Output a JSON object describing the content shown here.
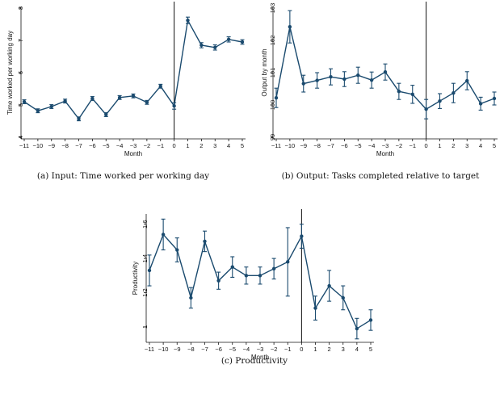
{
  "panels": [
    {
      "caption": "(a) Input: Time worked per working day",
      "chart_data": {
        "type": "line",
        "xlabel": "Month",
        "ylabel": "Time worked per working day",
        "x_ticks": [
          "−11",
          "−10",
          "−9",
          "−8",
          "−7",
          "−6",
          "−5",
          "−4",
          "−3",
          "−2",
          "−1",
          "0",
          "1",
          "2",
          "3",
          "4",
          "5"
        ],
        "y_ticks": [
          "4",
          "5",
          "6",
          "7",
          "8"
        ],
        "xlim": [
          -11,
          5
        ],
        "ylim": [
          3.95,
          8.05
        ],
        "vline_x": 0,
        "grid": false,
        "color": "#1a4a6e",
        "series": [
          {
            "x": [
              -11,
              -10,
              -9,
              -8,
              -7,
              -6,
              -5,
              -4,
              -3,
              -2,
              -1,
              0,
              1,
              2,
              3,
              4,
              5
            ],
            "y": [
              5.1,
              4.82,
              4.95,
              5.12,
              4.57,
              5.2,
              4.7,
              5.23,
              5.28,
              5.08,
              5.58,
              4.97,
              7.62,
              6.85,
              6.78,
              7.03,
              6.95
            ],
            "err": [
              0.06,
              0.06,
              0.06,
              0.06,
              0.06,
              0.06,
              0.06,
              0.06,
              0.06,
              0.06,
              0.06,
              0.1,
              0.1,
              0.08,
              0.08,
              0.08,
              0.07
            ]
          }
        ]
      }
    },
    {
      "caption": "(b) Output: Tasks completed relative to target",
      "chart_data": {
        "type": "line",
        "xlabel": "Month",
        "ylabel": "Output by month",
        "x_ticks": [
          "−11",
          "−10",
          "−9",
          "−8",
          "−7",
          "−6",
          "−5",
          "−4",
          "−3",
          "−2",
          "−1",
          "0",
          "1",
          "2",
          "3",
          "4",
          "5"
        ],
        "y_ticks": [
          "99",
          "100",
          "101",
          "102",
          "103"
        ],
        "xlim": [
          -11,
          5
        ],
        "ylim": [
          98.95,
          103.05
        ],
        "vline_x": 0,
        "grid": false,
        "color": "#1a4a6e",
        "series": [
          {
            "x": [
              -11,
              -10,
              -9,
              -8,
              -7,
              -6,
              -5,
              -4,
              -3,
              -2,
              -1,
              0,
              1,
              2,
              3,
              4,
              5
            ],
            "y": [
              100.22,
              102.42,
              100.66,
              100.76,
              100.87,
              100.8,
              100.92,
              100.77,
              101.02,
              100.42,
              100.33,
              99.87,
              100.12,
              100.37,
              100.75,
              100.04,
              100.2
            ],
            "err": [
              0.3,
              0.5,
              0.26,
              0.24,
              0.25,
              0.23,
              0.25,
              0.25,
              0.25,
              0.25,
              0.28,
              0.3,
              0.23,
              0.3,
              0.28,
              0.2,
              0.2
            ]
          }
        ]
      }
    },
    {
      "caption": "(c) Productivity",
      "chart_data": {
        "type": "line",
        "xlabel": "Month",
        "ylabel": "Productivity",
        "x_ticks": [
          "−11",
          "−10",
          "−9",
          "−8",
          "−7",
          "−6",
          "−5",
          "−4",
          "−3",
          "−2",
          "−1",
          "0",
          "1",
          "2",
          "3",
          "4",
          "5"
        ],
        "y_ticks": [
          "1",
          "1.2",
          "1.4",
          "1.6"
        ],
        "xlim": [
          -11,
          5
        ],
        "ylim": [
          0.91,
          1.66
        ],
        "vline_x": 0,
        "grid": false,
        "color": "#1a4a6e",
        "series": [
          {
            "x": [
              -11,
              -10,
              -9,
              -8,
              -7,
              -6,
              -5,
              -4,
              -3,
              -2,
              -1,
              0,
              1,
              2,
              3,
              4,
              5
            ],
            "y": [
              1.33,
              1.54,
              1.45,
              1.17,
              1.5,
              1.27,
              1.35,
              1.3,
              1.3,
              1.34,
              1.38,
              1.53,
              1.11,
              1.24,
              1.17,
              0.99,
              1.04
            ],
            "err": [
              0.09,
              0.09,
              0.07,
              0.06,
              0.06,
              0.05,
              0.06,
              0.05,
              0.05,
              0.06,
              0.2,
              0.07,
              0.07,
              0.09,
              0.07,
              0.06,
              0.06
            ]
          }
        ]
      }
    }
  ]
}
